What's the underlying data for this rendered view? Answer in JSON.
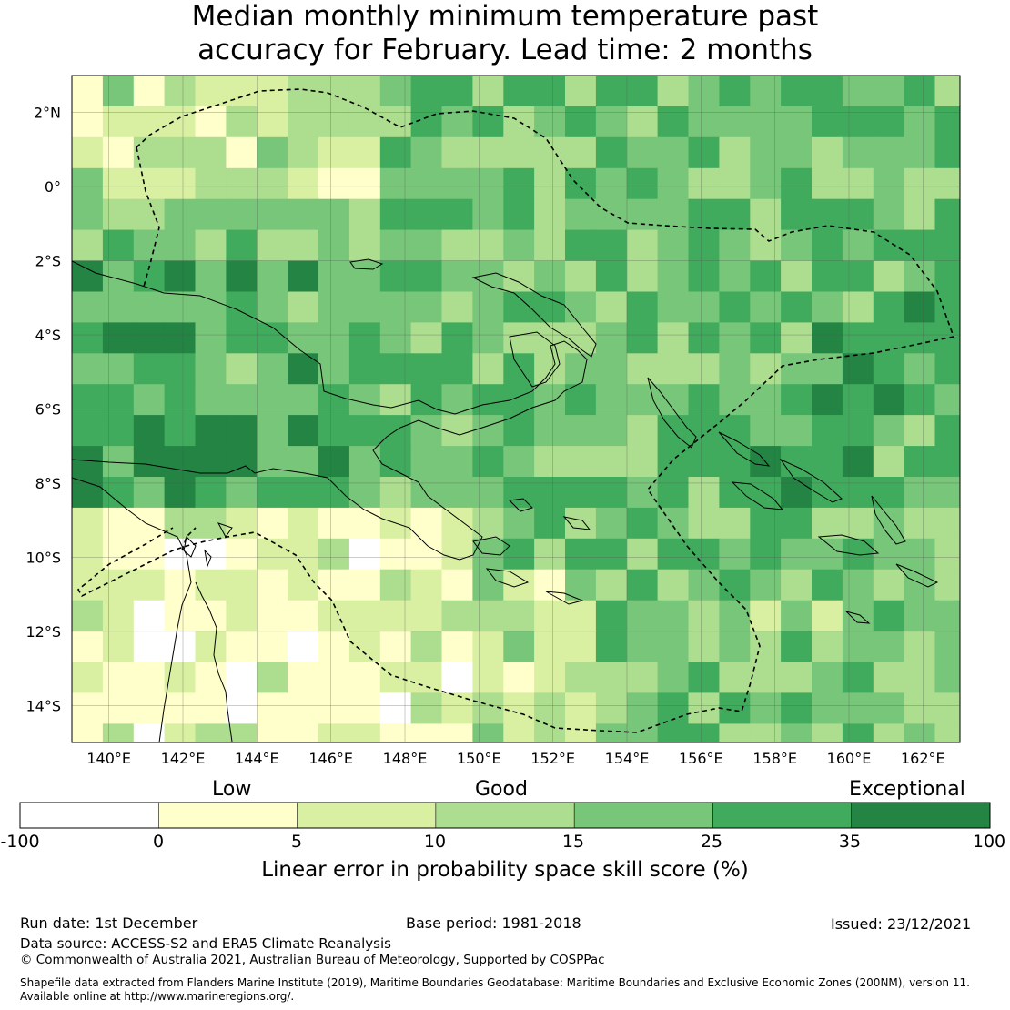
{
  "title": {
    "line1": "Median monthly minimum temperature past",
    "line2": "accuracy for February. Lead time: 2 months"
  },
  "map": {
    "lon_labels": [
      "140°E",
      "142°E",
      "144°E",
      "146°E",
      "148°E",
      "150°E",
      "152°E",
      "154°E",
      "156°E",
      "158°E",
      "160°E",
      "162°E"
    ],
    "lat_labels": [
      "2°N",
      "0°",
      "2°S",
      "4°S",
      "6°S",
      "8°S",
      "10°S",
      "12°S",
      "14°S"
    ],
    "lon_range": [
      139,
      163
    ],
    "lat_range": [
      -15,
      3
    ],
    "grid_step_deg": 0.833
  },
  "colorbar": {
    "categories": [
      "Low",
      "Good",
      "Exceptional"
    ],
    "ticks": [
      "-100",
      "0",
      "5",
      "10",
      "15",
      "25",
      "35",
      "100"
    ],
    "colors": [
      "#ffffff",
      "#ffffcc",
      "#d9f0a3",
      "#addd8e",
      "#78c679",
      "#41ab5d",
      "#238443"
    ],
    "label": "Linear error in probability space skill score (%)"
  },
  "footer": {
    "run_date": "Run date: 1st December",
    "base_period": "Base period: 1981-2018",
    "issued": "Issued: 23/12/2021",
    "data_source": "Data source: ACCESS-S2 and ERA5 Climate Reanalysis",
    "copyright": "© Commonwealth of Australia 2021, Australian Bureau of Meteorology, Supported by COSPPac",
    "shapefile1": "Shapefile data extracted from Flanders Marine Institute (2019), Maritime Boundaries Geodatabase: Maritime Boundaries and Exclusive Economic Zones (200NM), version 11.",
    "shapefile2": "Available online at http://www.marineregions.org/."
  }
}
